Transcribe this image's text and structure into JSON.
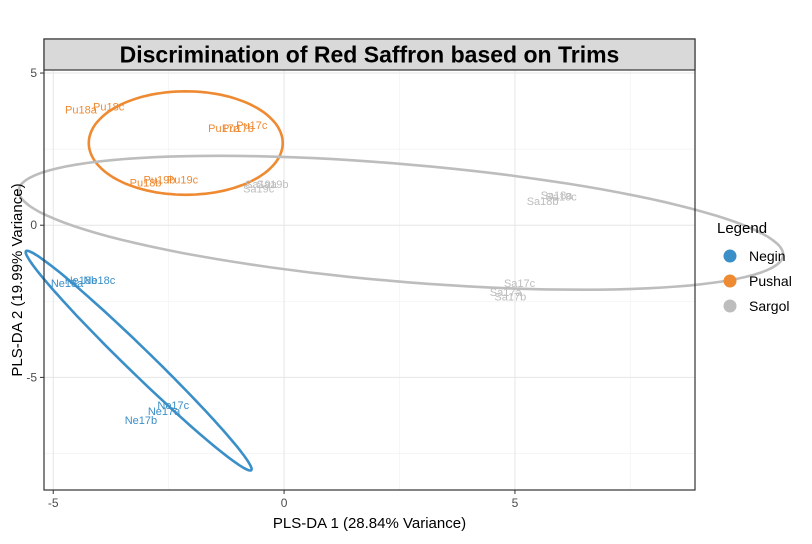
{
  "chart_data": {
    "type": "scatter",
    "title": "Discrimination of Red Saffron based on Trims",
    "xlabel": "PLS-DA 1 (28.84% Variance)",
    "ylabel": "PLS-DA 2 (19.99% Variance)",
    "xlim": [
      -5.2,
      8.9
    ],
    "ylim": [
      -8.7,
      5.1
    ],
    "x_ticks": [
      -5,
      0,
      5
    ],
    "y_ticks": [
      -5,
      0,
      5
    ],
    "x_tick_labels": [
      "-5",
      "0",
      "5"
    ],
    "y_tick_labels": [
      "-5",
      "0",
      "5"
    ],
    "grid": true,
    "legend_title": "Legend",
    "legend_position": "right",
    "series": [
      {
        "name": "Negin",
        "color": "#3a8fc8",
        "points": [
          {
            "label": "Ne18a",
            "x": -4.7,
            "y": -1.9
          },
          {
            "label": "Ne18b",
            "x": -4.4,
            "y": -1.8
          },
          {
            "label": "Ne18c",
            "x": -4.0,
            "y": -1.8
          },
          {
            "label": "Ne17a",
            "x": -2.6,
            "y": -6.1
          },
          {
            "label": "Ne17b",
            "x": -3.1,
            "y": -6.4
          },
          {
            "label": "Ne17c",
            "x": -2.4,
            "y": -5.9
          }
        ],
        "ellipse": {
          "cx": -3.15,
          "cy": -4.45,
          "rx": 4.35,
          "ry": 0.32,
          "angle_deg": -56
        }
      },
      {
        "name": "Pushal",
        "color": "#ee8a32",
        "points": [
          {
            "label": "Pu18a",
            "x": -4.4,
            "y": 3.8
          },
          {
            "label": "Pu18c",
            "x": -3.8,
            "y": 3.9
          },
          {
            "label": "Pu17a",
            "x": -1.3,
            "y": 3.2
          },
          {
            "label": "Pu17c",
            "x": -0.7,
            "y": 3.3
          },
          {
            "label": "Pu17b",
            "x": -1.0,
            "y": 3.2
          },
          {
            "label": "Pu18b",
            "x": -3.0,
            "y": 1.4
          },
          {
            "label": "Pu19c",
            "x": -2.2,
            "y": 1.5
          },
          {
            "label": "Pu19b",
            "x": -2.7,
            "y": 1.5
          }
        ],
        "ellipse": {
          "cx": -2.13,
          "cy": 2.7,
          "rx": 2.1,
          "ry": 1.7,
          "angle_deg": 0
        }
      },
      {
        "name": "Sargol",
        "color": "#bdbdbd",
        "points": [
          {
            "label": "Sa19a",
            "x": -0.5,
            "y": 1.35
          },
          {
            "label": "Sa19b",
            "x": -0.25,
            "y": 1.35
          },
          {
            "label": "Sa19c",
            "x": -0.55,
            "y": 1.2
          },
          {
            "label": "Sa18a",
            "x": 5.9,
            "y": 1.0
          },
          {
            "label": "Sa18b",
            "x": 5.6,
            "y": 0.8
          },
          {
            "label": "Sa18c",
            "x": 6.0,
            "y": 0.95
          },
          {
            "label": "Sa17a",
            "x": 4.8,
            "y": -2.2
          },
          {
            "label": "Sa17b",
            "x": 4.9,
            "y": -2.35
          },
          {
            "label": "Sa17c",
            "x": 5.1,
            "y": -1.9
          }
        ],
        "ellipse": {
          "cx": 2.53,
          "cy": 0.08,
          "rx": 8.35,
          "ry": 1.92,
          "angle_deg": -7.6
        }
      }
    ]
  }
}
